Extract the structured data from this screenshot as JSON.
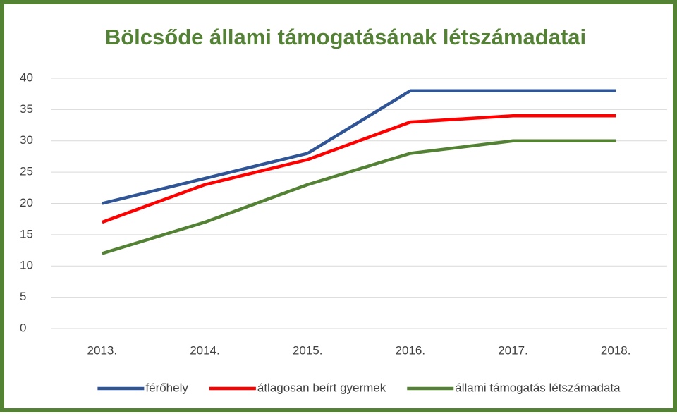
{
  "chart_data": {
    "type": "line",
    "title": "Bölcsőde állami támogatásának létszámadatai",
    "categories": [
      "2013.",
      "2014.",
      "2015.",
      "2016.",
      "2017.",
      "2018."
    ],
    "series": [
      {
        "name": "férőhely",
        "color": "#2f5597",
        "values": [
          20,
          24,
          28,
          38,
          38,
          38
        ]
      },
      {
        "name": "átlagosan beírt gyermek",
        "color": "#ff0000",
        "values": [
          17,
          23,
          27,
          33,
          34,
          34
        ]
      },
      {
        "name": "állami támogatás létszámadata",
        "color": "#548235",
        "values": [
          12,
          17,
          23,
          28,
          30,
          30
        ]
      }
    ],
    "ylim": [
      0,
      40
    ],
    "yticks": [
      0,
      5,
      10,
      15,
      20,
      25,
      30,
      35,
      40
    ],
    "grid": true,
    "legend": "bottom"
  }
}
